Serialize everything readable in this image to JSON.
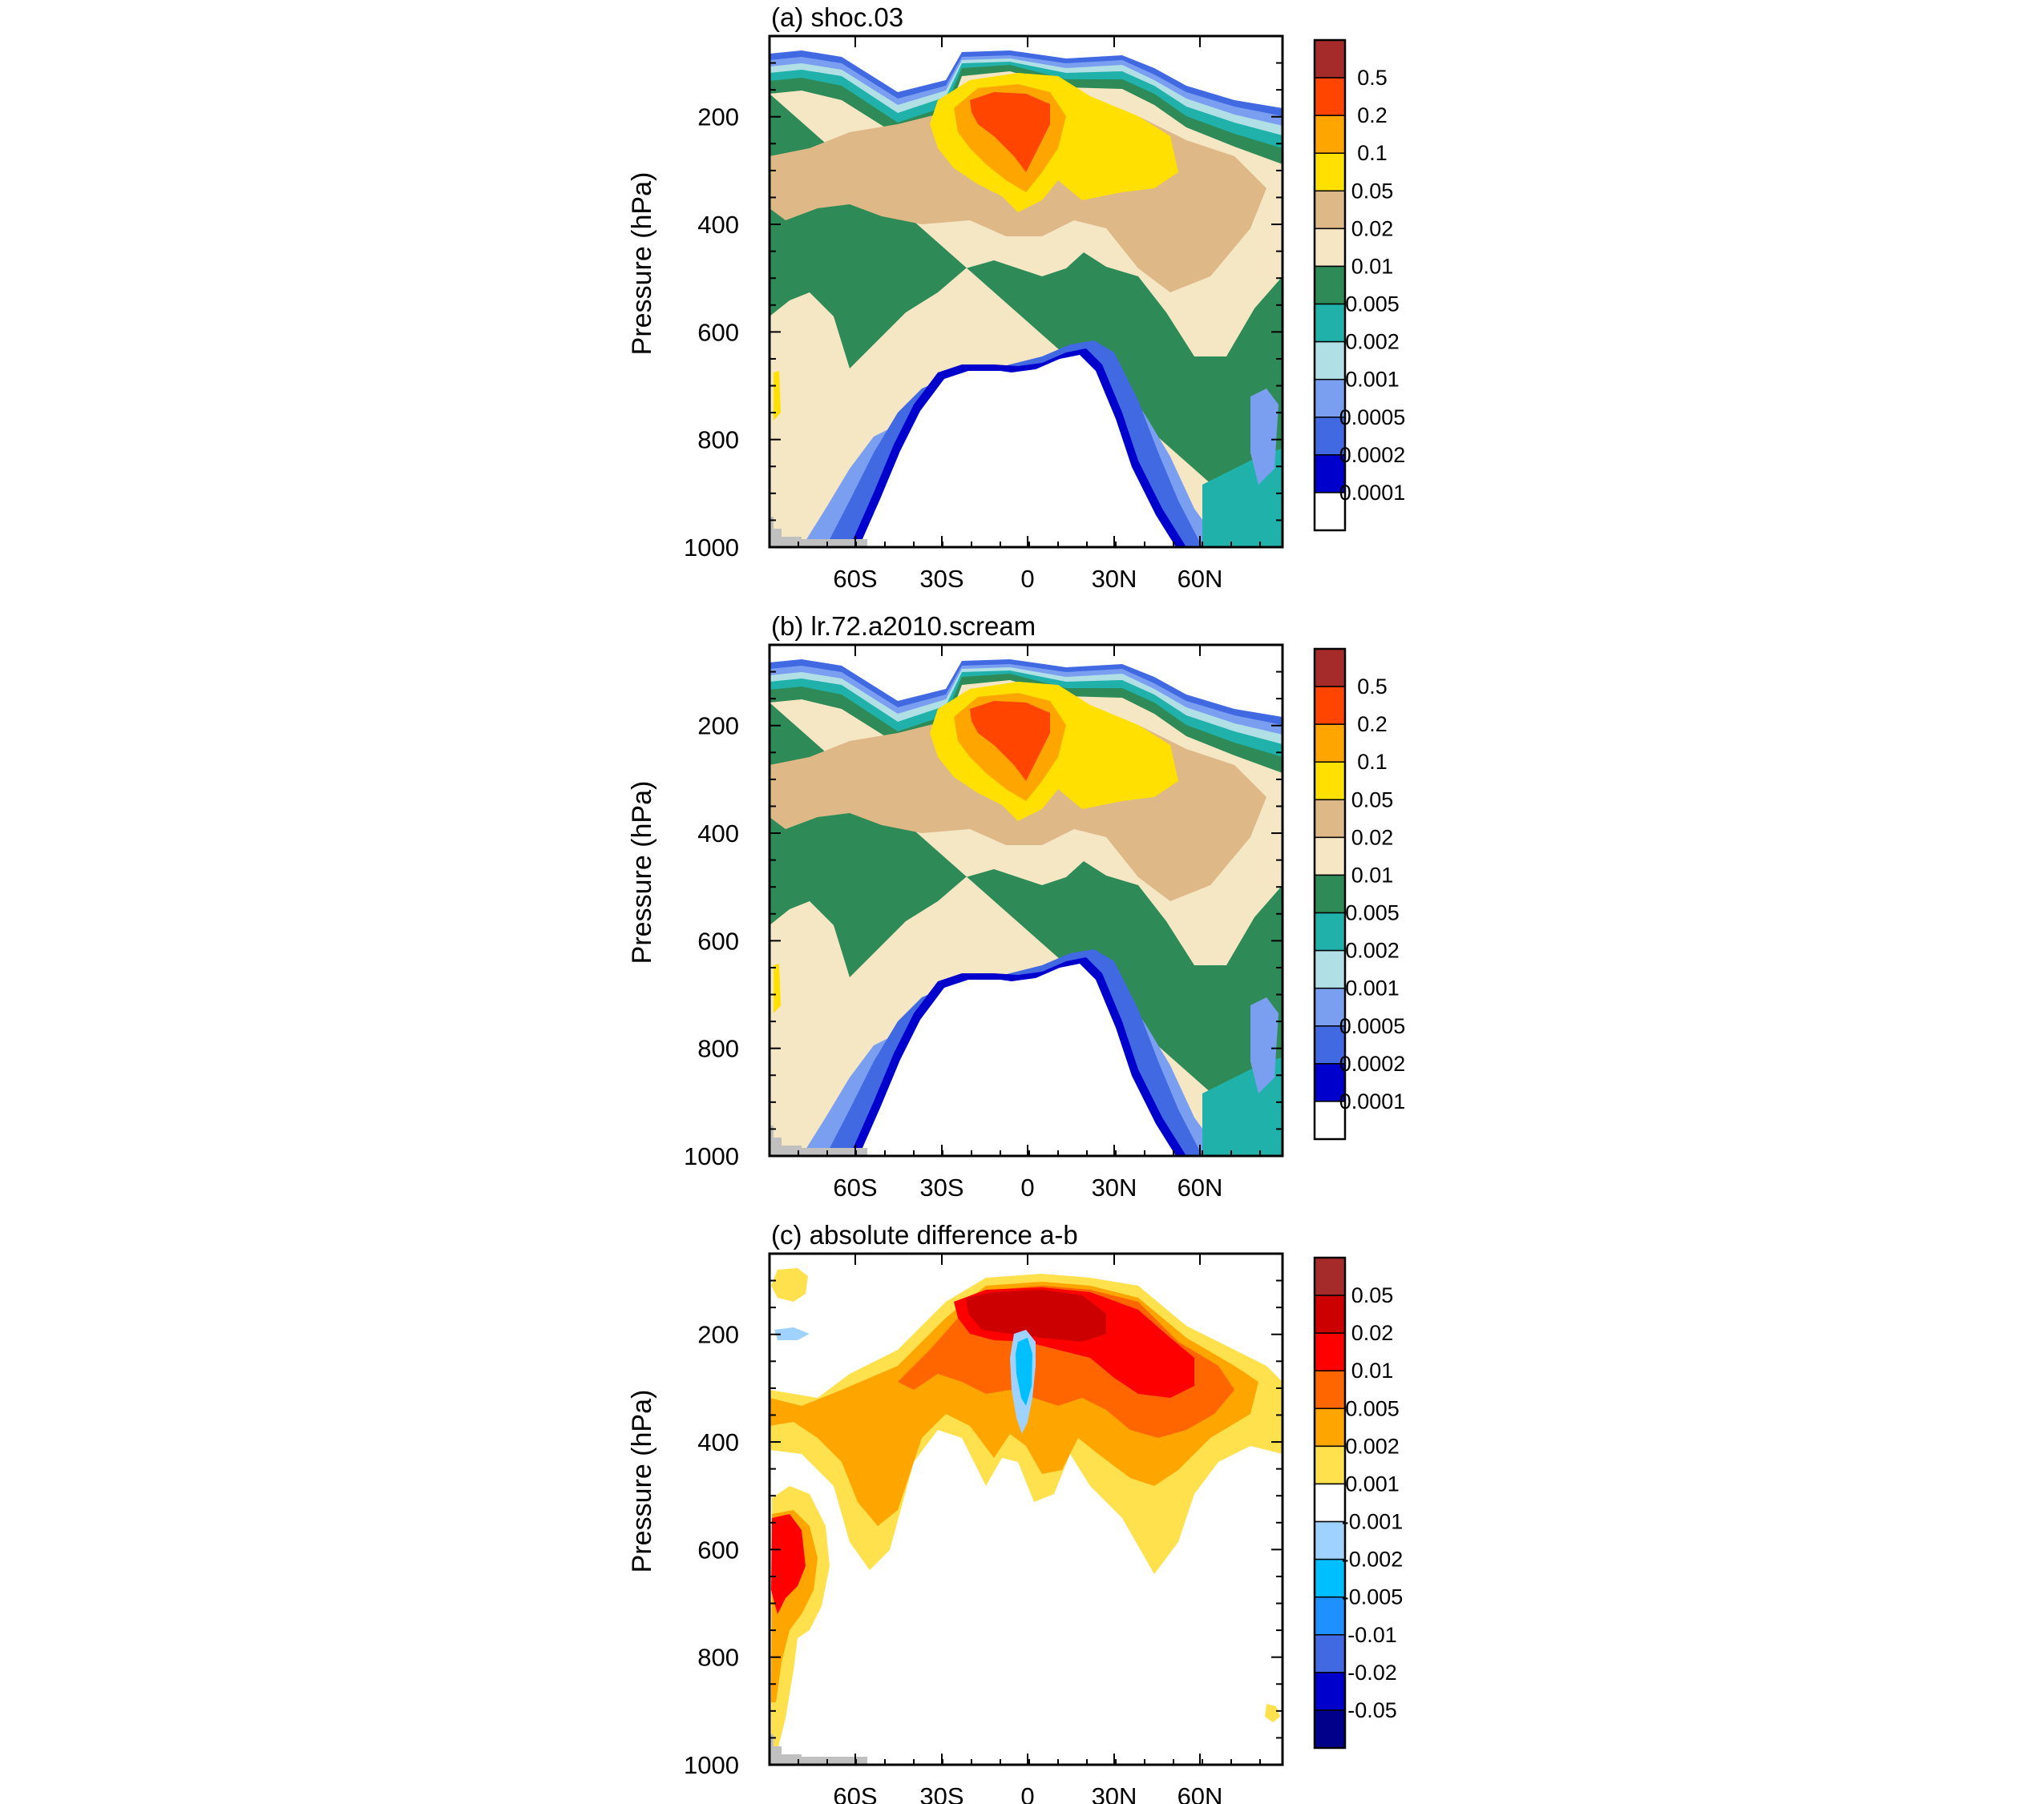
{
  "chart_data": [
    {
      "type": "contour",
      "title": "(a) shoc.03",
      "ylabel": "Pressure (hPa)",
      "xlabel": "",
      "ylim": [
        50,
        1000
      ],
      "y_ticks": [
        200,
        400,
        600,
        800,
        1000
      ],
      "x_tick_labels": [
        "60S",
        "30S",
        "0",
        "30N",
        "60N"
      ],
      "levels": [
        "0.5",
        "0.2",
        "0.1",
        "0.05",
        "0.02",
        "0.01",
        "0.005",
        "0.002",
        "0.001",
        "0.0005",
        "0.0002",
        "0.0001"
      ],
      "colors": [
        "#a52a2a",
        "#ff4500",
        "#ffa500",
        "#ffe000",
        "#deb887",
        "#f5e6c4",
        "#2e8b57",
        "#20b2aa",
        "#b0e0e6",
        "#7b9ff0",
        "#4169e1",
        "#0000cd",
        "#ffffff"
      ],
      "variant": "a"
    },
    {
      "type": "contour",
      "title": "(b) lr.72.a2010.scream",
      "ylabel": "Pressure (hPa)",
      "xlabel": "",
      "ylim": [
        50,
        1000
      ],
      "y_ticks": [
        200,
        400,
        600,
        800,
        1000
      ],
      "x_tick_labels": [
        "60S",
        "30S",
        "0",
        "30N",
        "60N"
      ],
      "levels": [
        "0.5",
        "0.2",
        "0.1",
        "0.05",
        "0.02",
        "0.01",
        "0.005",
        "0.002",
        "0.001",
        "0.0005",
        "0.0002",
        "0.0001"
      ],
      "colors": [
        "#a52a2a",
        "#ff4500",
        "#ffa500",
        "#ffe000",
        "#deb887",
        "#f5e6c4",
        "#2e8b57",
        "#20b2aa",
        "#b0e0e6",
        "#7b9ff0",
        "#4169e1",
        "#0000cd",
        "#ffffff"
      ],
      "variant": "b"
    },
    {
      "type": "contour",
      "title": "(c) absolute difference a-b",
      "ylabel": "Pressure (hPa)",
      "xlabel": "",
      "ylim": [
        50,
        1000
      ],
      "y_ticks": [
        200,
        400,
        600,
        800,
        1000
      ],
      "x_tick_labels": [
        "60S",
        "30S",
        "0",
        "30N",
        "60N"
      ],
      "levels": [
        "0.05",
        "0.02",
        "0.01",
        "0.005",
        "0.002",
        "0.001",
        "-0.001",
        "-0.002",
        "-0.005",
        "-0.01",
        "-0.02",
        "-0.05"
      ],
      "colors": [
        "#a52a2a",
        "#cd0000",
        "#ff0000",
        "#ff6600",
        "#ffa500",
        "#ffe14d",
        "#ffffff",
        "#a0d2ff",
        "#00bfff",
        "#1e90ff",
        "#4169e1",
        "#0000cd",
        "#00008b"
      ],
      "variant": "c"
    }
  ]
}
